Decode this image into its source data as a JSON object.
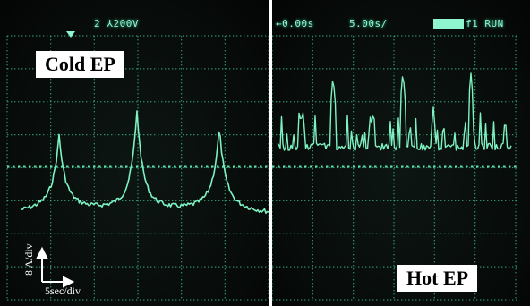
{
  "image": {
    "description_labels": {
      "left_label": "Cold EP",
      "right_label": "Hot EP"
    },
    "readouts": {
      "channel": "2  ⅄200V",
      "time_offset": "←0.00s",
      "timebase": "5.00s/",
      "mode": "f1 RUN"
    },
    "scale_bar": {
      "vertical": "8 A/div",
      "horizontal": "5sec/div"
    },
    "colors": {
      "trace": "#7ef2c2",
      "grid": "#3fbf8f",
      "screen": "#070b09"
    }
  }
}
